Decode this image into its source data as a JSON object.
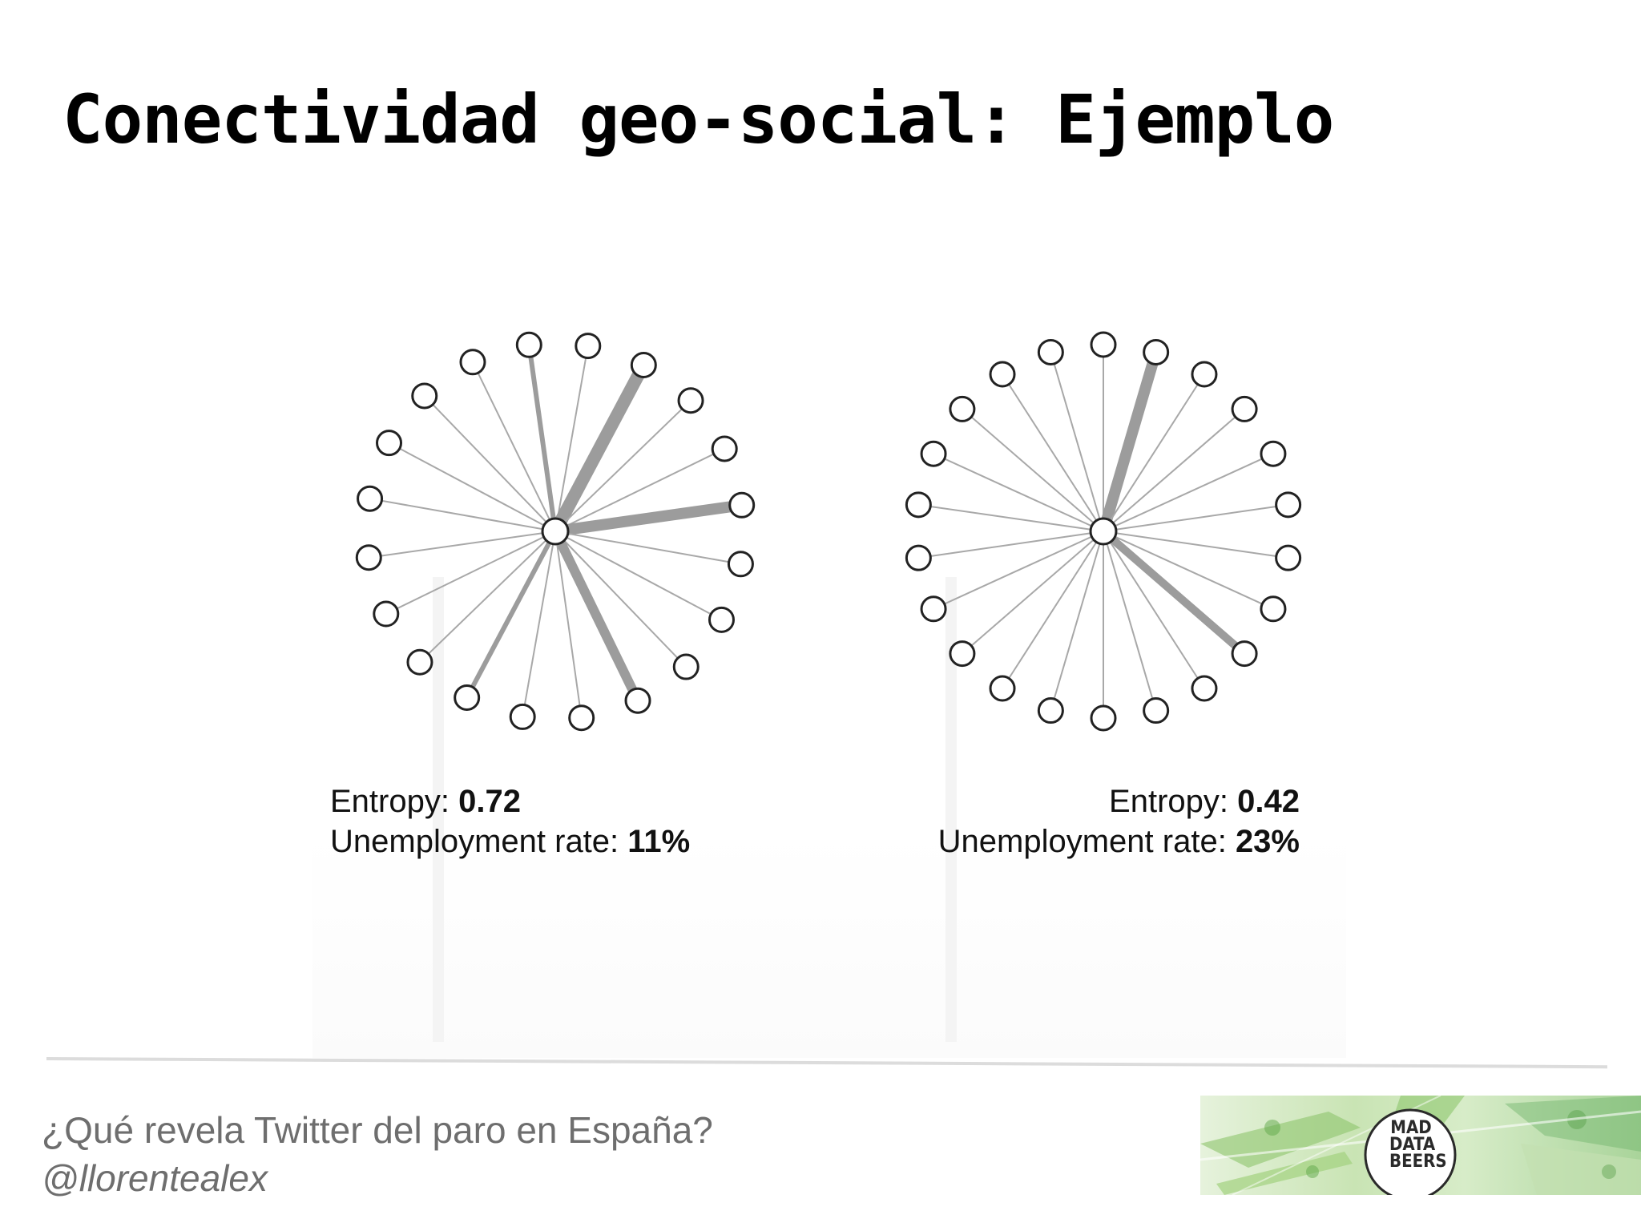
{
  "slide": {
    "title": "Conectividad geo-social: Ejemplo"
  },
  "diagrams": [
    {
      "entropy_label": "Entropy:",
      "entropy_value": "0.72",
      "unemployment_label": "Unemployment rate:",
      "unemployment_value": "11%",
      "node_count": 20,
      "thick_edge_nodes": [
        1,
        4,
        8,
        11,
        19
      ],
      "thick_edge_weights": [
        16,
        14,
        12,
        6,
        6
      ]
    },
    {
      "entropy_label": "Entropy:",
      "entropy_value": "0.42",
      "unemployment_label": "Unemployment rate:",
      "unemployment_value": "23%",
      "node_count": 22,
      "thick_edge_nodes": [
        1,
        8
      ],
      "thick_edge_weights": [
        14,
        10
      ]
    }
  ],
  "footer": {
    "subtitle": "¿Qué revela Twitter del paro en España?",
    "handle": "@llorentealex",
    "logo_lines": [
      "MAD",
      "DATA",
      "BEERS"
    ]
  },
  "colors": {
    "edge_thin": "#a8a8a8",
    "edge_thick": "#9c9c9c",
    "node_stroke": "#222222",
    "footer_text": "#6e6e6e",
    "logo_green": "#9acb7a"
  }
}
